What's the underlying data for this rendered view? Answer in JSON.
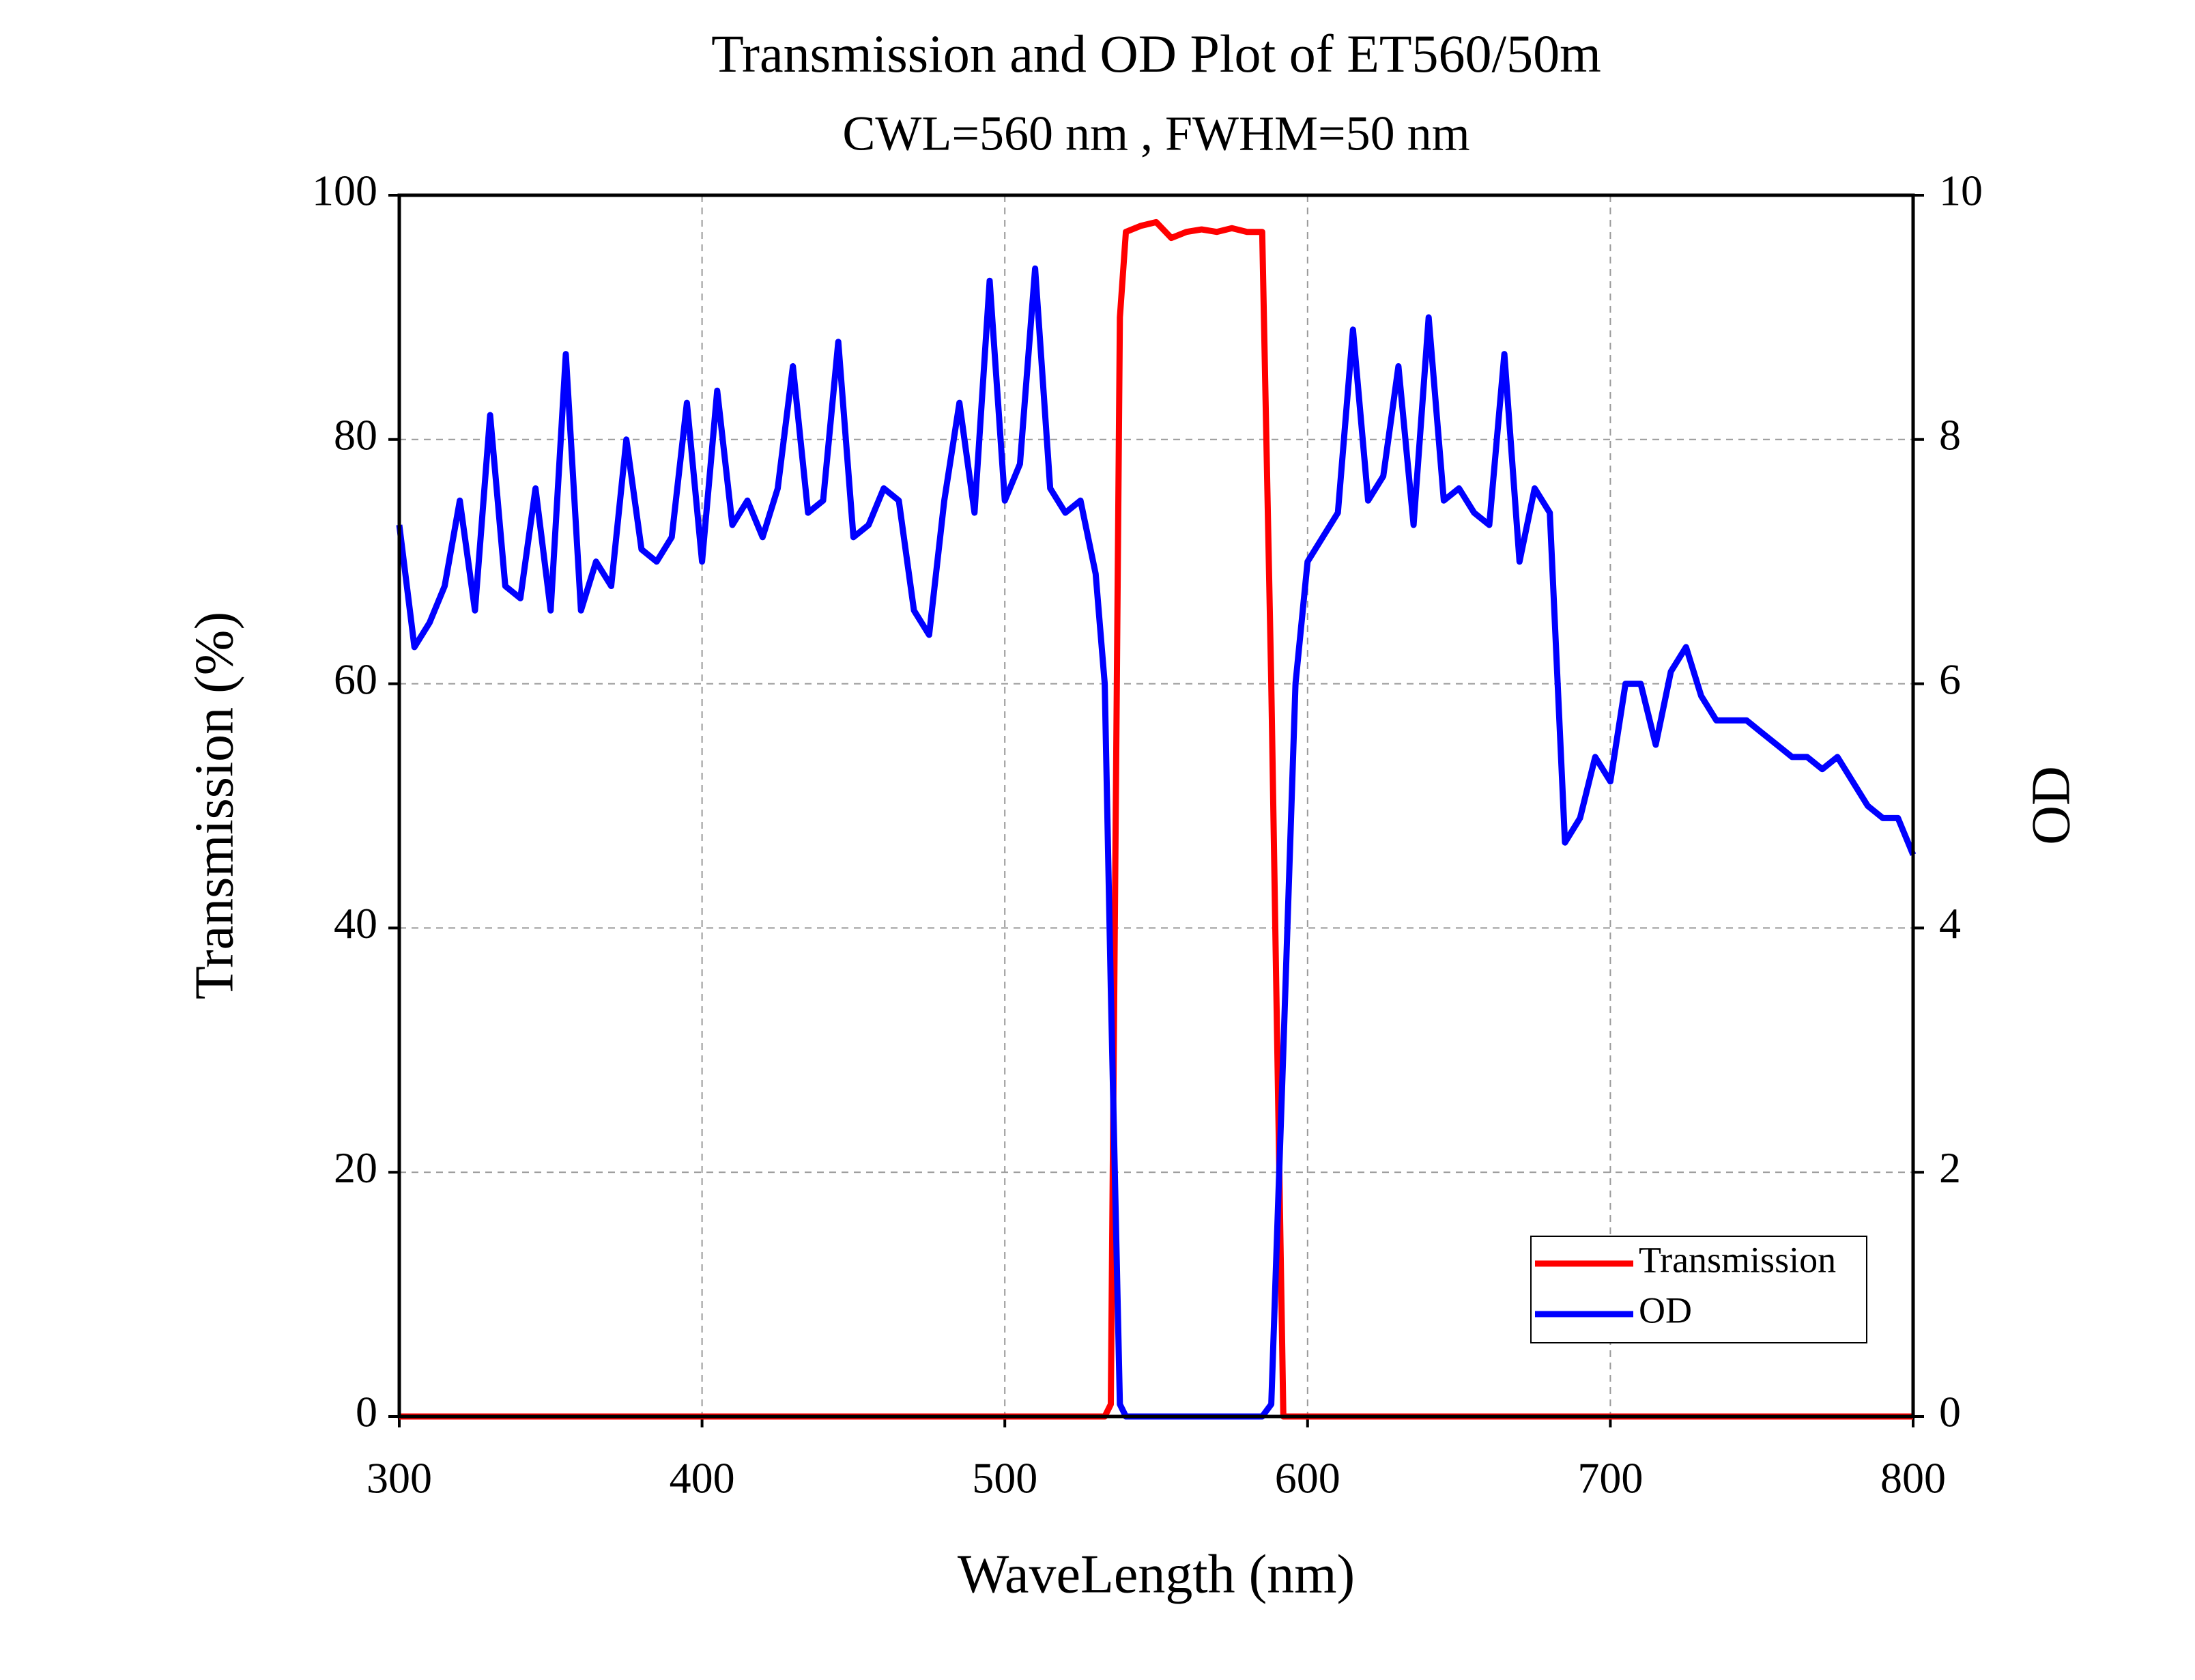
{
  "chart_data": {
    "type": "line",
    "title": "Transmission and OD Plot of ET560/50m",
    "subtitle": "CWL=560 nm , FWHM=50 nm",
    "xlabel": "WaveLength (nm)",
    "ylabel": "Transmission (%)",
    "y2label": "OD",
    "x": [
      300,
      305,
      310,
      315,
      320,
      325,
      330,
      335,
      340,
      345,
      350,
      355,
      360,
      365,
      370,
      375,
      380,
      385,
      390,
      395,
      400,
      405,
      410,
      415,
      420,
      425,
      430,
      435,
      440,
      445,
      450,
      455,
      460,
      465,
      470,
      475,
      480,
      485,
      490,
      495,
      500,
      505,
      510,
      515,
      520,
      525,
      530,
      533,
      535,
      538,
      540,
      545,
      550,
      555,
      560,
      565,
      570,
      575,
      580,
      585,
      588,
      592,
      596,
      600,
      605,
      610,
      615,
      620,
      625,
      630,
      635,
      640,
      645,
      650,
      655,
      660,
      665,
      670,
      675,
      680,
      685,
      690,
      695,
      700,
      705,
      710,
      715,
      720,
      725,
      730,
      735,
      740,
      745,
      750,
      755,
      760,
      765,
      770,
      775,
      780,
      785,
      790,
      795,
      800
    ],
    "series": [
      {
        "name": "Transmission",
        "color": "#ff0000",
        "values": [
          0,
          0,
          0,
          0,
          0,
          0,
          0,
          0,
          0,
          0,
          0,
          0,
          0,
          0,
          0,
          0,
          0,
          0,
          0,
          0,
          0,
          0,
          0,
          0,
          0,
          0,
          0,
          0,
          0,
          0,
          0,
          0,
          0,
          0,
          0,
          0,
          0,
          0,
          0,
          0,
          0,
          0,
          0,
          0,
          0,
          0,
          0,
          0,
          1,
          90,
          97,
          97.5,
          97.8,
          96.5,
          97,
          97.2,
          97,
          97.3,
          97,
          97,
          60,
          0,
          0,
          0,
          0,
          0,
          0,
          0,
          0,
          0,
          0,
          0,
          0,
          0,
          0,
          0,
          0,
          0,
          0,
          0,
          0,
          0,
          0,
          0,
          0,
          0,
          0,
          0,
          0,
          0,
          0,
          0,
          0,
          0,
          0,
          0,
          0,
          0,
          0,
          0,
          0,
          0,
          0,
          0
        ]
      },
      {
        "name": "OD",
        "color": "#0000ff",
        "axis": "y2",
        "values": [
          7.3,
          6.3,
          6.5,
          6.8,
          7.5,
          6.6,
          8.2,
          6.8,
          6.7,
          7.6,
          6.6,
          8.7,
          6.6,
          7.0,
          6.8,
          8.0,
          7.1,
          7.0,
          7.2,
          8.3,
          7.0,
          8.4,
          7.3,
          7.5,
          7.2,
          7.6,
          8.6,
          7.4,
          7.5,
          8.8,
          7.2,
          7.3,
          7.6,
          7.5,
          6.6,
          6.4,
          7.5,
          8.3,
          7.4,
          9.3,
          7.5,
          7.8,
          9.4,
          7.6,
          7.4,
          7.5,
          6.9,
          6.0,
          3.5,
          0.1,
          0,
          0,
          0,
          0,
          0,
          0,
          0,
          0,
          0,
          0,
          0.1,
          3.0,
          6.0,
          7.0,
          7.2,
          7.4,
          8.9,
          7.5,
          7.7,
          8.6,
          7.3,
          9.0,
          7.5,
          7.6,
          7.4,
          7.3,
          8.7,
          7.0,
          7.6,
          7.4,
          4.7,
          4.9,
          5.4,
          5.2,
          6.0,
          6.0,
          5.5,
          6.1,
          6.3,
          5.9,
          5.7,
          5.7,
          5.7,
          5.6,
          5.5,
          5.4,
          5.4,
          5.3,
          5.4,
          5.2,
          5.0,
          4.9,
          4.9,
          4.6
        ]
      }
    ],
    "xlim": [
      300,
      800
    ],
    "xticks": [
      300,
      400,
      500,
      600,
      700,
      800
    ],
    "ylim": [
      0,
      100
    ],
    "yticks": [
      0,
      20,
      40,
      60,
      80,
      100
    ],
    "y2lim": [
      0,
      10
    ],
    "y2ticks": [
      0,
      2,
      4,
      6,
      8,
      10
    ],
    "grid": true,
    "legend": "lower right"
  }
}
